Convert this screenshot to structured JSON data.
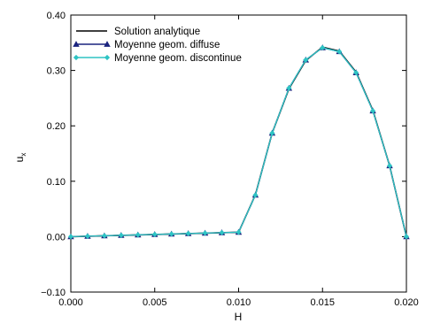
{
  "chart_data": {
    "type": "line",
    "title": "",
    "xlabel": "H",
    "ylabel": "u",
    "ylabel_subscript": "x",
    "xlim": [
      0.0,
      0.02
    ],
    "ylim": [
      -0.1,
      0.4
    ],
    "xticks": [
      "0.000",
      "0.005",
      "0.010",
      "0.015",
      "0.020"
    ],
    "yticks": [
      "-0.10",
      "0.00",
      "0.10",
      "0.20",
      "0.30",
      "0.40"
    ],
    "grid": false,
    "legend_position": "top-left",
    "x": [
      0.0,
      0.001,
      0.002,
      0.003,
      0.004,
      0.005,
      0.006,
      0.007,
      0.008,
      0.009,
      0.01,
      0.011,
      0.012,
      0.013,
      0.014,
      0.015,
      0.016,
      0.017,
      0.018,
      0.019,
      0.02
    ],
    "series": [
      {
        "name": "Solution analytique",
        "color": "#000000",
        "marker": "none",
        "values": [
          0.0,
          0.0008,
          0.0016,
          0.0024,
          0.0032,
          0.004,
          0.0048,
          0.0056,
          0.0064,
          0.0072,
          0.008,
          0.0755,
          0.187,
          0.267,
          0.318,
          0.342,
          0.335,
          0.297,
          0.228,
          0.128,
          0.0
        ]
      },
      {
        "name": "Moyenne geom. diffuse",
        "color": "#1a237e",
        "marker": "triangle",
        "values": [
          0.0,
          0.0008,
          0.0016,
          0.0024,
          0.0032,
          0.004,
          0.0048,
          0.0056,
          0.0064,
          0.0072,
          0.008,
          0.075,
          0.187,
          0.268,
          0.319,
          0.341,
          0.334,
          0.296,
          0.227,
          0.128,
          0.0
        ]
      },
      {
        "name": "Moyenne geom. discontinue",
        "color": "#2ec4c4",
        "marker": "diamond",
        "values": [
          0.0,
          0.0008,
          0.0016,
          0.0024,
          0.0032,
          0.004,
          0.0048,
          0.0056,
          0.0064,
          0.0072,
          0.008,
          0.075,
          0.187,
          0.268,
          0.319,
          0.341,
          0.334,
          0.296,
          0.227,
          0.128,
          0.0
        ]
      }
    ]
  }
}
